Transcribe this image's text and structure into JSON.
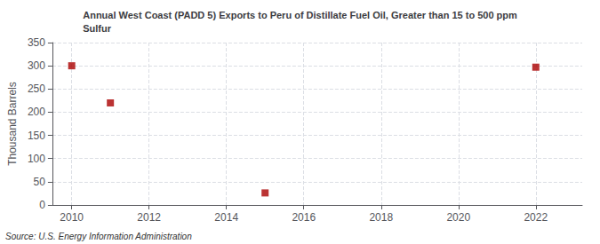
{
  "chart_data": {
    "type": "scatter",
    "title": "Annual West Coast (PADD 5) Exports to Peru of Distillate Fuel Oil, Greater than 15 to 500 ppm\nSulfur",
    "ylabel": "Thousand Barrels",
    "source": "Source: U.S. Energy Information Administration",
    "x": [
      2010,
      2011,
      2015,
      2022
    ],
    "values": [
      300,
      220,
      26,
      297
    ],
    "color": "#aa0000",
    "marker": "square",
    "xlim": [
      2009.5,
      2023.2
    ],
    "xticks": [
      2010,
      2012,
      2014,
      2016,
      2018,
      2020,
      2022
    ],
    "ylim": [
      0,
      350
    ],
    "yticks": [
      0,
      50,
      100,
      150,
      200,
      250,
      300,
      350
    ],
    "grid": true
  }
}
